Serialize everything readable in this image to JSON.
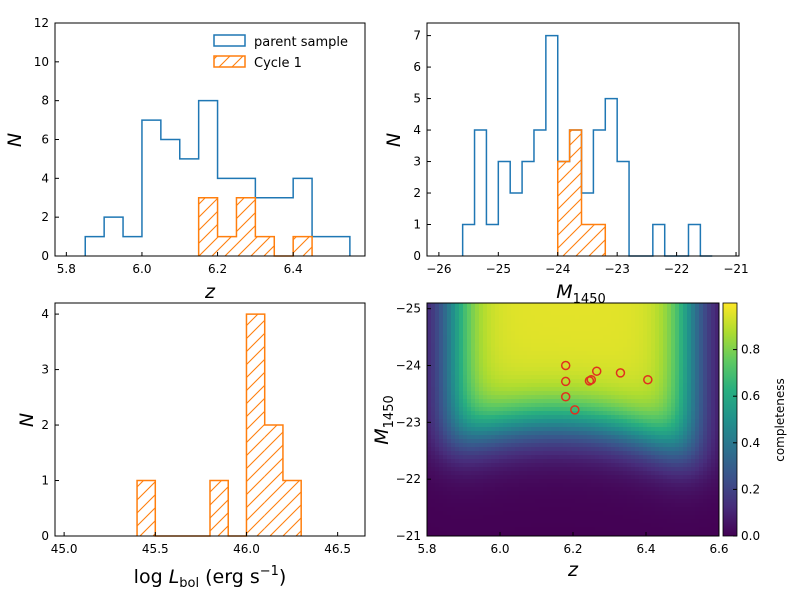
{
  "colors": {
    "parent": "#1f77b4",
    "cycle1": "#ff7f0e",
    "marker": "#e0301e"
  },
  "legend": {
    "parent": "parent sample",
    "cycle1": "Cycle 1"
  },
  "chart_data": [
    {
      "type": "bar",
      "xlabel": "z",
      "ylabel": "N",
      "xlim": [
        5.77,
        6.59
      ],
      "ylim": [
        0,
        12
      ],
      "xticks": [
        "5.8",
        "6.0",
        "6.2",
        "6.4"
      ],
      "yticks": [
        "0",
        "2",
        "4",
        "6",
        "8",
        "10",
        "12"
      ],
      "legend_position": "top-right",
      "series": [
        {
          "name": "parent sample",
          "style": "step",
          "edges": [
            5.85,
            5.9,
            5.95,
            6.0,
            6.05,
            6.1,
            6.15,
            6.2,
            6.25,
            6.3,
            6.35,
            6.4,
            6.45,
            6.5,
            6.55
          ],
          "counts": [
            1,
            2,
            1,
            7,
            6,
            5,
            8,
            4,
            4,
            3,
            3,
            4,
            1,
            1
          ]
        },
        {
          "name": "Cycle 1",
          "style": "hatched",
          "edges": [
            6.15,
            6.2,
            6.25,
            6.3,
            6.35,
            6.4,
            6.45
          ],
          "counts": [
            3,
            1,
            3,
            1,
            0,
            1
          ]
        }
      ]
    },
    {
      "type": "bar",
      "xlabel": "M1450",
      "ylabel": "N",
      "xlim": [
        -26.2,
        -20.95
      ],
      "ylim": [
        0,
        7.4
      ],
      "xticks": [
        "−26",
        "−25",
        "−24",
        "−23",
        "−22",
        "−21"
      ],
      "yticks": [
        "0",
        "1",
        "2",
        "3",
        "4",
        "5",
        "6",
        "7"
      ],
      "series": [
        {
          "name": "parent sample",
          "style": "step",
          "edges": [
            -25.6,
            -25.4,
            -25.2,
            -25.0,
            -24.8,
            -24.6,
            -24.4,
            -24.2,
            -24.0,
            -23.8,
            -23.6,
            -23.4,
            -23.2,
            -23.0,
            -22.8,
            -22.6,
            -22.4,
            -22.2,
            -22.0,
            -21.8,
            -21.6,
            -21.4
          ],
          "counts": [
            1,
            4,
            1,
            3,
            2,
            3,
            4,
            7,
            3,
            4,
            2,
            4,
            5,
            3,
            0,
            0,
            1,
            0,
            0,
            1,
            0
          ]
        },
        {
          "name": "Cycle 1",
          "style": "hatched",
          "edges": [
            -24.0,
            -23.8,
            -23.6,
            -23.4,
            -23.2
          ],
          "counts": [
            3,
            4,
            1,
            1
          ]
        }
      ]
    },
    {
      "type": "bar",
      "xlabel": "log L_bol (erg s^-1)",
      "ylabel": "N",
      "xlim": [
        44.95,
        46.65
      ],
      "ylim": [
        0,
        4.2
      ],
      "xticks": [
        "45.0",
        "45.5",
        "46.0",
        "46.5"
      ],
      "yticks": [
        "0",
        "1",
        "2",
        "3",
        "4"
      ],
      "series": [
        {
          "name": "Cycle 1",
          "style": "hatched",
          "edges": [
            45.4,
            45.5,
            45.8,
            45.9,
            46.0,
            46.1,
            46.2,
            46.3
          ],
          "counts": [
            1,
            0,
            1,
            0,
            4,
            2,
            1
          ]
        }
      ]
    },
    {
      "type": "heatmap",
      "xlabel": "z",
      "ylabel": "M1450",
      "xlim": [
        5.8,
        6.6
      ],
      "ylim": [
        -21,
        -25.1
      ],
      "xticks": [
        "5.8",
        "6.0",
        "6.2",
        "6.4",
        "6.6"
      ],
      "yticks": [
        "−25",
        "−24",
        "−23",
        "−22",
        "−21"
      ],
      "colorbar_label": "completeness",
      "colorbar_range": [
        0,
        1
      ],
      "colorbar_ticks": [
        "0.0",
        "0.2",
        "0.4",
        "0.6",
        "0.8"
      ],
      "colormap": "viridis",
      "points": [
        {
          "z": 6.18,
          "M1450": -24.0
        },
        {
          "z": 6.18,
          "M1450": -23.72
        },
        {
          "z": 6.18,
          "M1450": -23.45
        },
        {
          "z": 6.205,
          "M1450": -23.22
        },
        {
          "z": 6.245,
          "M1450": -23.73
        },
        {
          "z": 6.25,
          "M1450": -23.75
        },
        {
          "z": 6.265,
          "M1450": -23.9
        },
        {
          "z": 6.33,
          "M1450": -23.87
        },
        {
          "z": 6.405,
          "M1450": -23.75
        }
      ]
    }
  ]
}
